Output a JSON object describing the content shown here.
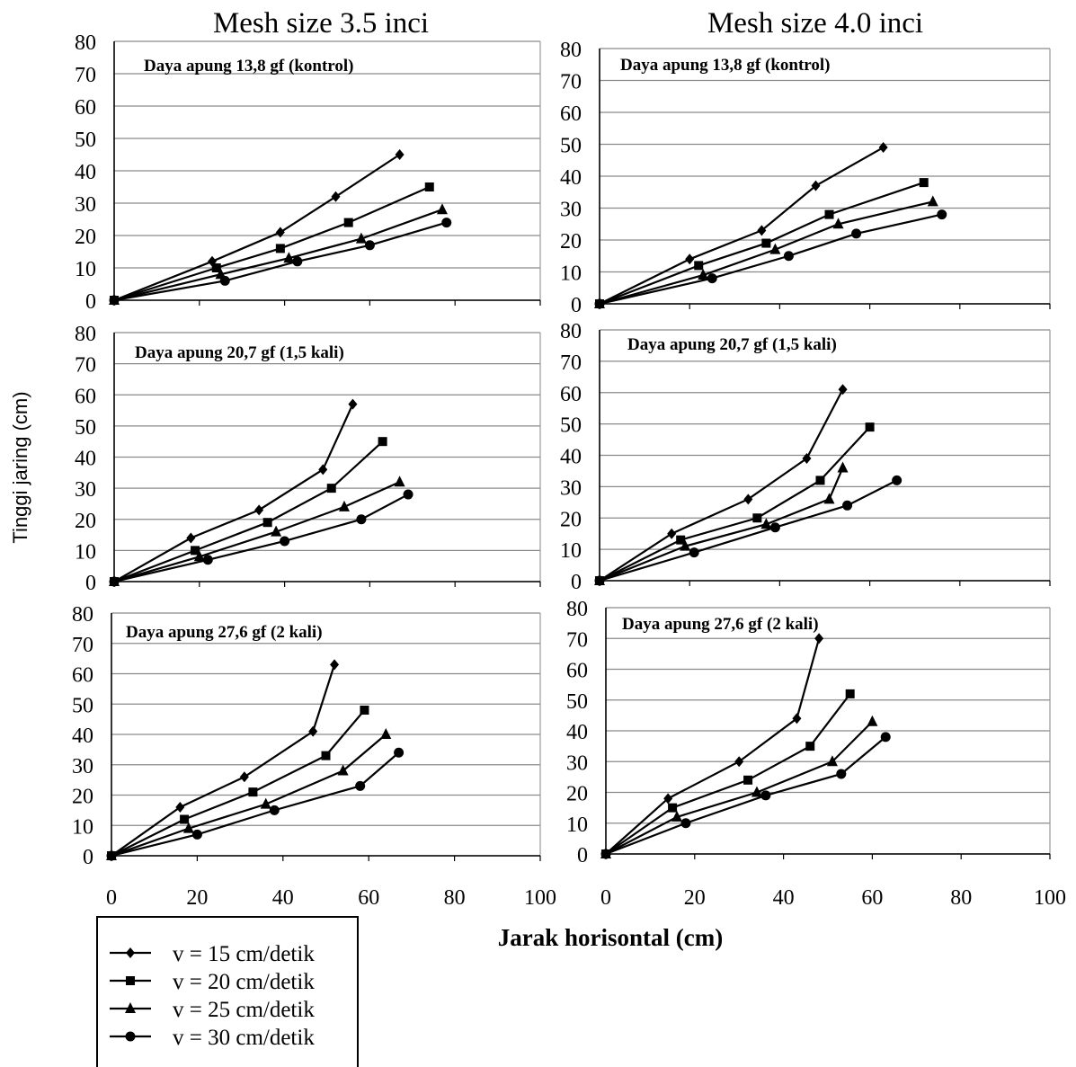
{
  "figure": {
    "column_titles": [
      "Mesh size 3.5 inci",
      "Mesh size 4.0 inci"
    ],
    "ylabel": "Tinggi jaring (cm)",
    "xlabel": "Jarak horisontal (cm)",
    "x_ticks": [
      0,
      20,
      40,
      60,
      80,
      100
    ],
    "y_ticks": [
      0,
      10,
      20,
      30,
      40,
      50,
      60,
      70,
      80
    ],
    "legend": [
      {
        "label": "v = 15 cm/detik",
        "marker": "diamond"
      },
      {
        "label": "v = 20 cm/detik",
        "marker": "square"
      },
      {
        "label": "v = 25 cm/detik",
        "marker": "triangle"
      },
      {
        "label": "v = 30 cm/detik",
        "marker": "circle"
      }
    ]
  },
  "chart_data": [
    {
      "type": "line",
      "title": "Daya apung 13,8 gf (kontrol)",
      "column": "Mesh size 3.5 inci",
      "xlim": [
        0,
        100
      ],
      "ylim": [
        0,
        80
      ],
      "grid": "horizontal",
      "series": [
        {
          "label": "v = 15 cm/detik",
          "marker": "diamond",
          "x": [
            0,
            23,
            39,
            52,
            67
          ],
          "y": [
            0,
            12,
            21,
            32,
            45
          ]
        },
        {
          "label": "v = 20 cm/detik",
          "marker": "square",
          "x": [
            0,
            24,
            39,
            55,
            74
          ],
          "y": [
            0,
            10,
            16,
            24,
            35
          ]
        },
        {
          "label": "v = 25 cm/detik",
          "marker": "triangle",
          "x": [
            0,
            25,
            41,
            58,
            77
          ],
          "y": [
            0,
            8,
            13,
            19,
            28
          ]
        },
        {
          "label": "v = 30 cm/detik",
          "marker": "circle",
          "x": [
            0,
            26,
            43,
            60,
            78
          ],
          "y": [
            0,
            6,
            12,
            17,
            24
          ]
        }
      ]
    },
    {
      "type": "line",
      "title": "Daya apung 13,8 gf (kontrol)",
      "column": "Mesh size 4.0 inci",
      "xlim": [
        0,
        100
      ],
      "ylim": [
        0,
        80
      ],
      "grid": "horizontal",
      "series": [
        {
          "label": "v = 15 cm/detik",
          "marker": "diamond",
          "x": [
            0,
            20,
            36,
            48,
            63
          ],
          "y": [
            0,
            14,
            23,
            37,
            49
          ]
        },
        {
          "label": "v = 20 cm/detik",
          "marker": "square",
          "x": [
            0,
            22,
            37,
            51,
            72
          ],
          "y": [
            0,
            12,
            19,
            28,
            38
          ]
        },
        {
          "label": "v = 25 cm/detik",
          "marker": "triangle",
          "x": [
            0,
            23,
            39,
            53,
            74
          ],
          "y": [
            0,
            9,
            17,
            25,
            32
          ]
        },
        {
          "label": "v = 30 cm/detik",
          "marker": "circle",
          "x": [
            0,
            25,
            42,
            57,
            76
          ],
          "y": [
            0,
            8,
            15,
            22,
            28
          ]
        }
      ]
    },
    {
      "type": "line",
      "title": "Daya apung 20,7 gf (1,5 kali)",
      "column": "Mesh size 3.5 inci",
      "xlim": [
        0,
        100
      ],
      "ylim": [
        0,
        80
      ],
      "grid": "horizontal",
      "series": [
        {
          "label": "v = 15 cm/detik",
          "marker": "diamond",
          "x": [
            0,
            18,
            34,
            49,
            56
          ],
          "y": [
            0,
            14,
            23,
            36,
            57
          ]
        },
        {
          "label": "v = 20 cm/detik",
          "marker": "square",
          "x": [
            0,
            19,
            36,
            51,
            63
          ],
          "y": [
            0,
            10,
            19,
            30,
            45
          ]
        },
        {
          "label": "v = 25 cm/detik",
          "marker": "triangle",
          "x": [
            0,
            20,
            38,
            54,
            67
          ],
          "y": [
            0,
            8,
            16,
            24,
            32
          ]
        },
        {
          "label": "v = 30 cm/detik",
          "marker": "circle",
          "x": [
            0,
            22,
            40,
            58,
            69
          ],
          "y": [
            0,
            7,
            13,
            20,
            28
          ]
        }
      ]
    },
    {
      "type": "line",
      "title": "Daya apung 20,7 gf (1,5 kali)",
      "column": "Mesh size 4.0 inci",
      "xlim": [
        0,
        100
      ],
      "ylim": [
        0,
        80
      ],
      "grid": "horizontal",
      "series": [
        {
          "label": "v = 15 cm/detik",
          "marker": "diamond",
          "x": [
            0,
            16,
            33,
            46,
            54
          ],
          "y": [
            0,
            15,
            26,
            39,
            61
          ]
        },
        {
          "label": "v = 20 cm/detik",
          "marker": "square",
          "x": [
            0,
            18,
            35,
            49,
            60
          ],
          "y": [
            0,
            13,
            20,
            32,
            49
          ]
        },
        {
          "label": "v = 25 cm/detik",
          "marker": "triangle",
          "x": [
            0,
            19,
            37,
            51,
            54
          ],
          "y": [
            0,
            11,
            18,
            26,
            36
          ]
        },
        {
          "label": "v = 30 cm/detik",
          "marker": "circle",
          "x": [
            0,
            21,
            39,
            55,
            66
          ],
          "y": [
            0,
            9,
            17,
            24,
            32
          ]
        }
      ]
    },
    {
      "type": "line",
      "title": "Daya apung 27,6 gf (2 kali)",
      "column": "Mesh size 3.5 inci",
      "xlim": [
        0,
        100
      ],
      "ylim": [
        0,
        80
      ],
      "grid": "horizontal",
      "series": [
        {
          "label": "v = 15 cm/detik",
          "marker": "diamond",
          "x": [
            0,
            16,
            31,
            47,
            52
          ],
          "y": [
            0,
            16,
            26,
            41,
            63
          ]
        },
        {
          "label": "v = 20 cm/detik",
          "marker": "square",
          "x": [
            0,
            17,
            33,
            50,
            59
          ],
          "y": [
            0,
            12,
            21,
            33,
            48
          ]
        },
        {
          "label": "v = 25 cm/detik",
          "marker": "triangle",
          "x": [
            0,
            18,
            36,
            54,
            64
          ],
          "y": [
            0,
            9,
            17,
            28,
            40
          ]
        },
        {
          "label": "v = 30 cm/detik",
          "marker": "circle",
          "x": [
            0,
            20,
            38,
            58,
            67
          ],
          "y": [
            0,
            7,
            15,
            23,
            34
          ]
        }
      ]
    },
    {
      "type": "line",
      "title": "Daya apung 27,6 gf (2 kali)",
      "column": "Mesh size 4.0 inci",
      "xlim": [
        0,
        100
      ],
      "ylim": [
        0,
        80
      ],
      "grid": "horizontal",
      "series": [
        {
          "label": "v = 15 cm/detik",
          "marker": "diamond",
          "x": [
            0,
            14,
            30,
            43,
            48
          ],
          "y": [
            0,
            18,
            30,
            44,
            70
          ]
        },
        {
          "label": "v = 20 cm/detik",
          "marker": "square",
          "x": [
            0,
            15,
            32,
            46,
            55
          ],
          "y": [
            0,
            15,
            24,
            35,
            52
          ]
        },
        {
          "label": "v = 25 cm/detik",
          "marker": "triangle",
          "x": [
            0,
            16,
            34,
            51,
            60
          ],
          "y": [
            0,
            12,
            20,
            30,
            43
          ]
        },
        {
          "label": "v = 30 cm/detik",
          "marker": "circle",
          "x": [
            0,
            18,
            36,
            53,
            63
          ],
          "y": [
            0,
            10,
            19,
            26,
            38
          ]
        }
      ]
    }
  ]
}
